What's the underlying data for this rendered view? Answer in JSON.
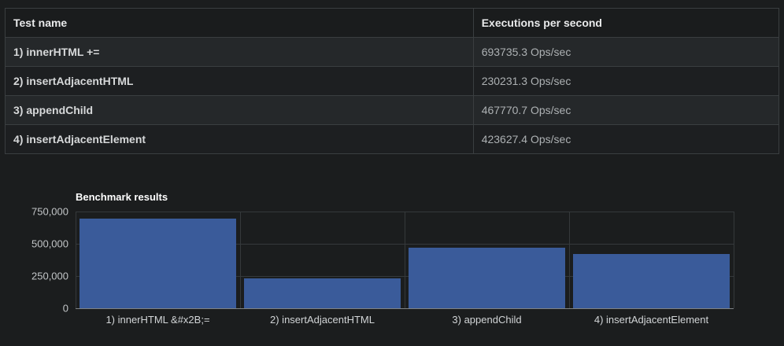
{
  "table": {
    "headers": [
      "Test name",
      "Executions per second"
    ],
    "rows": [
      {
        "name": "1) innerHTML +=",
        "value": "693735.3 Ops/sec"
      },
      {
        "name": "2) insertAdjacentHTML",
        "value": "230231.3 Ops/sec"
      },
      {
        "name": "3) appendChild",
        "value": "467770.7 Ops/sec"
      },
      {
        "name": "4) insertAdjacentElement",
        "value": "423627.4 Ops/sec"
      }
    ]
  },
  "chart": {
    "y_tick_labels": [
      "750,000",
      "500,000",
      "250,000",
      "0"
    ]
  },
  "chart_data": {
    "type": "bar",
    "title": "Benchmark results",
    "categories": [
      "1) innerHTML &#x2B;=",
      "2) insertAdjacentHTML",
      "3) appendChild",
      "4) insertAdjacentElement"
    ],
    "values": [
      693735.3,
      230231.3,
      467770.7,
      423627.4
    ],
    "xlabel": "",
    "ylabel": "",
    "ylim": [
      0,
      750000
    ],
    "yticks": [
      0,
      250000,
      500000,
      750000
    ],
    "grid": true,
    "legend": false,
    "bar_color": "#3a5b9a"
  },
  "colors": {
    "background": "#1b1d1e",
    "bar": "#3a5b9a",
    "gridline": "#35393b",
    "axis": "#7e8284"
  }
}
